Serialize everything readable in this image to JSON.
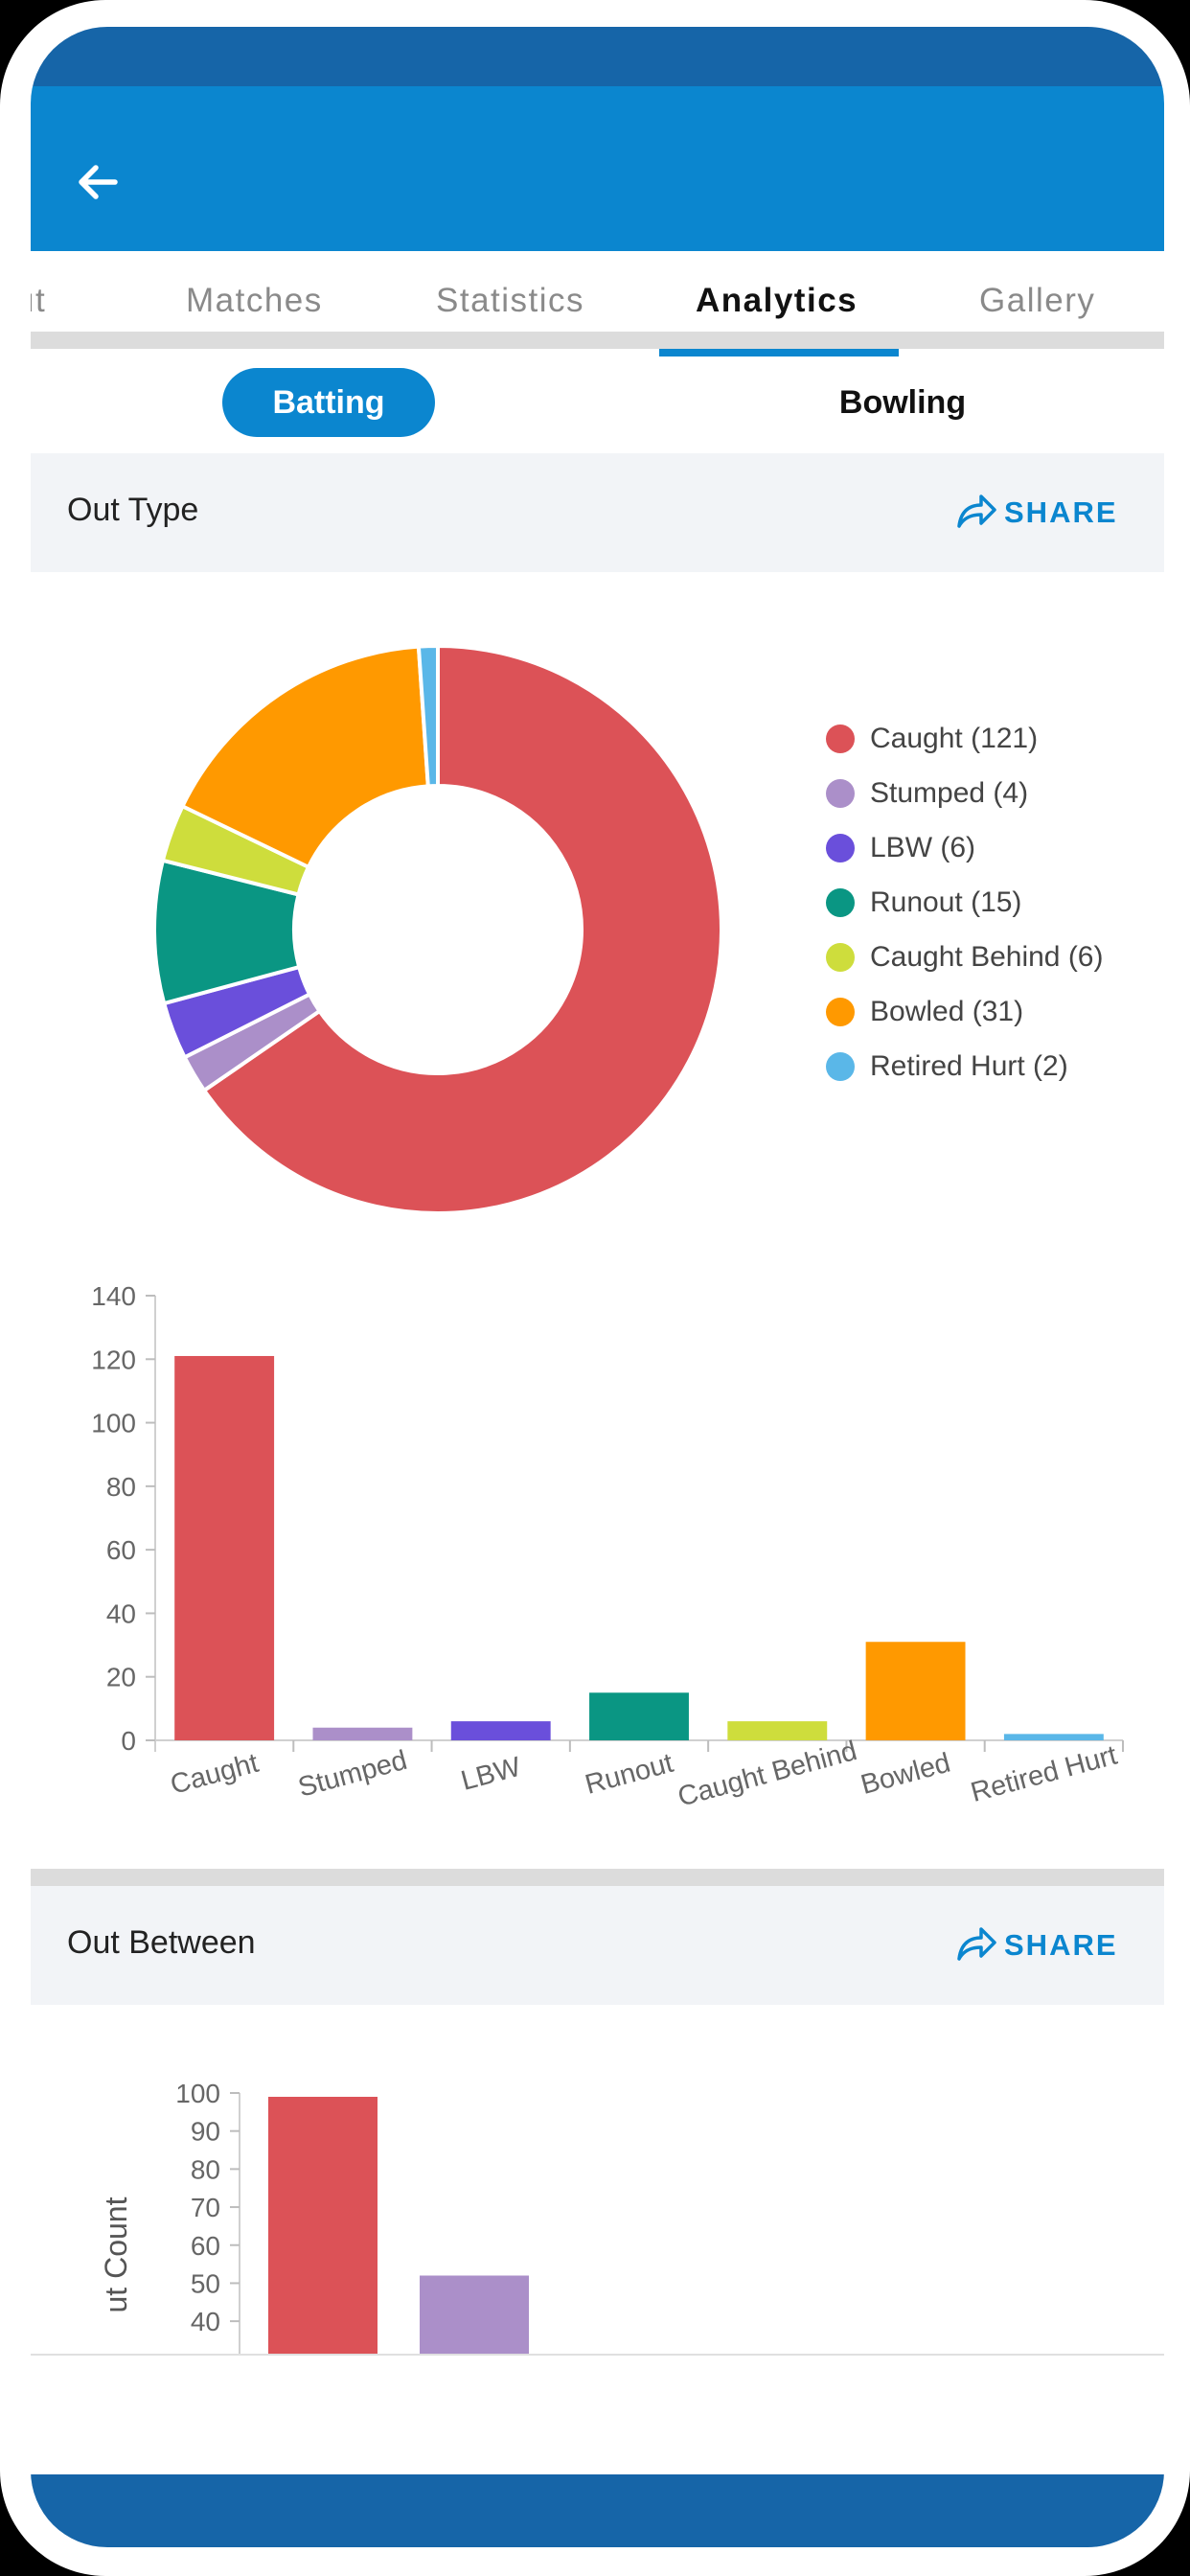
{
  "tabs": [
    {
      "label": "ut",
      "active": false
    },
    {
      "label": "Matches",
      "active": false
    },
    {
      "label": "Statistics",
      "active": false
    },
    {
      "label": "Analytics",
      "active": true
    },
    {
      "label": "Gallery",
      "active": false
    }
  ],
  "segments": {
    "batting": "Batting",
    "bowling": "Bowling",
    "selected": "Batting"
  },
  "out_type": {
    "title": "Out Type",
    "share_label": "SHARE"
  },
  "out_between": {
    "title": "Out Between",
    "share_label": "SHARE"
  },
  "legend": [
    {
      "label": "Caught (121)",
      "color": "#dc5257"
    },
    {
      "label": "Stumped (4)",
      "color": "#ab8fc9"
    },
    {
      "label": "LBW (6)",
      "color": "#6a4fdb"
    },
    {
      "label": "Runout (15)",
      "color": "#0a9683"
    },
    {
      "label": "Caught Behind (6)",
      "color": "#cedd3c"
    },
    {
      "label": "Bowled (31)",
      "color": "#ff9900"
    },
    {
      "label": "Retired Hurt (2)",
      "color": "#5ab7e8"
    }
  ],
  "chart_data": [
    {
      "type": "pie",
      "categories": [
        "Caught",
        "Stumped",
        "LBW",
        "Runout",
        "Caught Behind",
        "Bowled",
        "Retired Hurt"
      ],
      "values": [
        121,
        4,
        6,
        15,
        6,
        31,
        2
      ],
      "colors": [
        "#dc5257",
        "#ab8fc9",
        "#6a4fdb",
        "#0a9683",
        "#cedd3c",
        "#ff9900",
        "#5ab7e8"
      ],
      "donut": true,
      "legend_position": "right"
    },
    {
      "type": "bar",
      "categories": [
        "Caught",
        "Stumped",
        "LBW",
        "Runout",
        "Caught Behind",
        "Bowled",
        "Retired Hurt"
      ],
      "values": [
        121,
        4,
        6,
        15,
        6,
        31,
        2
      ],
      "colors": [
        "#dc5257",
        "#ab8fc9",
        "#6a4fdb",
        "#0a9683",
        "#cedd3c",
        "#ff9900",
        "#5ab7e8"
      ],
      "ylim": [
        0,
        140
      ],
      "yticks": [
        0,
        20,
        40,
        60,
        80,
        100,
        120,
        140
      ],
      "grid": false
    },
    {
      "type": "bar",
      "ylabel": "Out Count",
      "ylabel_visible": "ut Count",
      "values": [
        99,
        52
      ],
      "colors": [
        "#dc5257",
        "#ab8fc9"
      ],
      "yticks": [
        40,
        50,
        60,
        70,
        80,
        90,
        100
      ],
      "ylim_visible": [
        36,
        100
      ],
      "grid": false
    }
  ]
}
